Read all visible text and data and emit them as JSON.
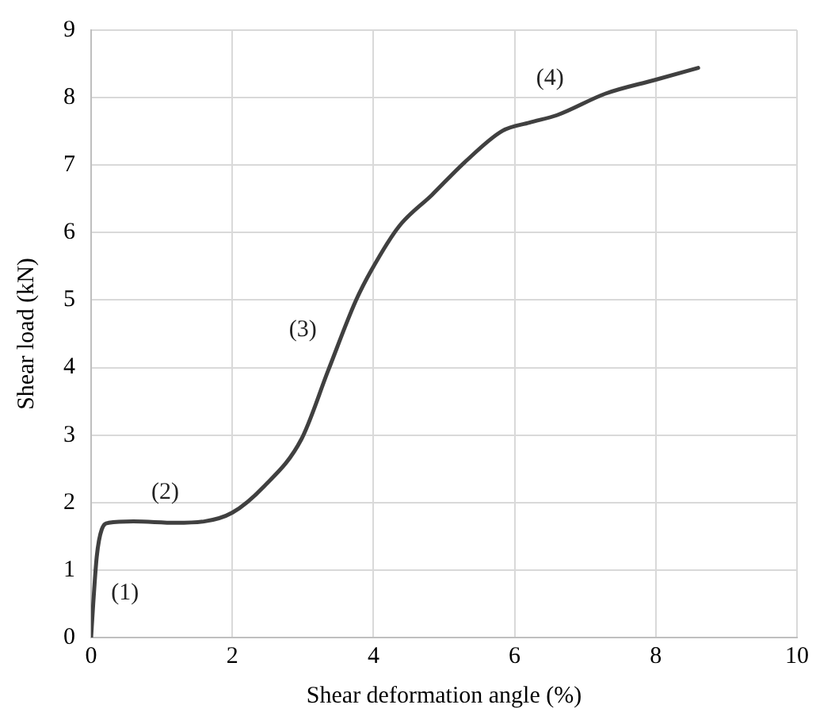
{
  "chart_data": {
    "type": "line",
    "xlabel": "Shear deformation angle (%)",
    "ylabel": "Shear load (kN)",
    "x": [
      0,
      0.03,
      0.08,
      0.15,
      0.25,
      0.6,
      1.2,
      1.6,
      2.0,
      2.44,
      2.98,
      3.36,
      3.75,
      3.98,
      4.36,
      4.83,
      5.29,
      5.83,
      6.21,
      6.6,
      7.29,
      7.98,
      8.6
    ],
    "series": [
      {
        "color": "#404040",
        "values": [
          0,
          0.5,
          1.2,
          1.6,
          1.7,
          1.72,
          1.7,
          1.72,
          1.85,
          2.23,
          2.94,
          3.96,
          4.99,
          5.46,
          6.09,
          6.56,
          7.04,
          7.51,
          7.63,
          7.74,
          8.06,
          8.26,
          8.44
        ]
      }
    ],
    "xlim": [
      0,
      10
    ],
    "xticks": [
      0,
      2,
      4,
      6,
      8,
      10
    ],
    "ylim": [
      0,
      9
    ],
    "yticks": [
      0,
      1,
      2,
      3,
      4,
      5,
      6,
      7,
      8,
      9
    ],
    "annotations": [
      "(1)",
      "(2)",
      "(3)",
      "(4)"
    ],
    "grid": true,
    "legend": false,
    "marker": "none",
    "line_style": "solid"
  }
}
